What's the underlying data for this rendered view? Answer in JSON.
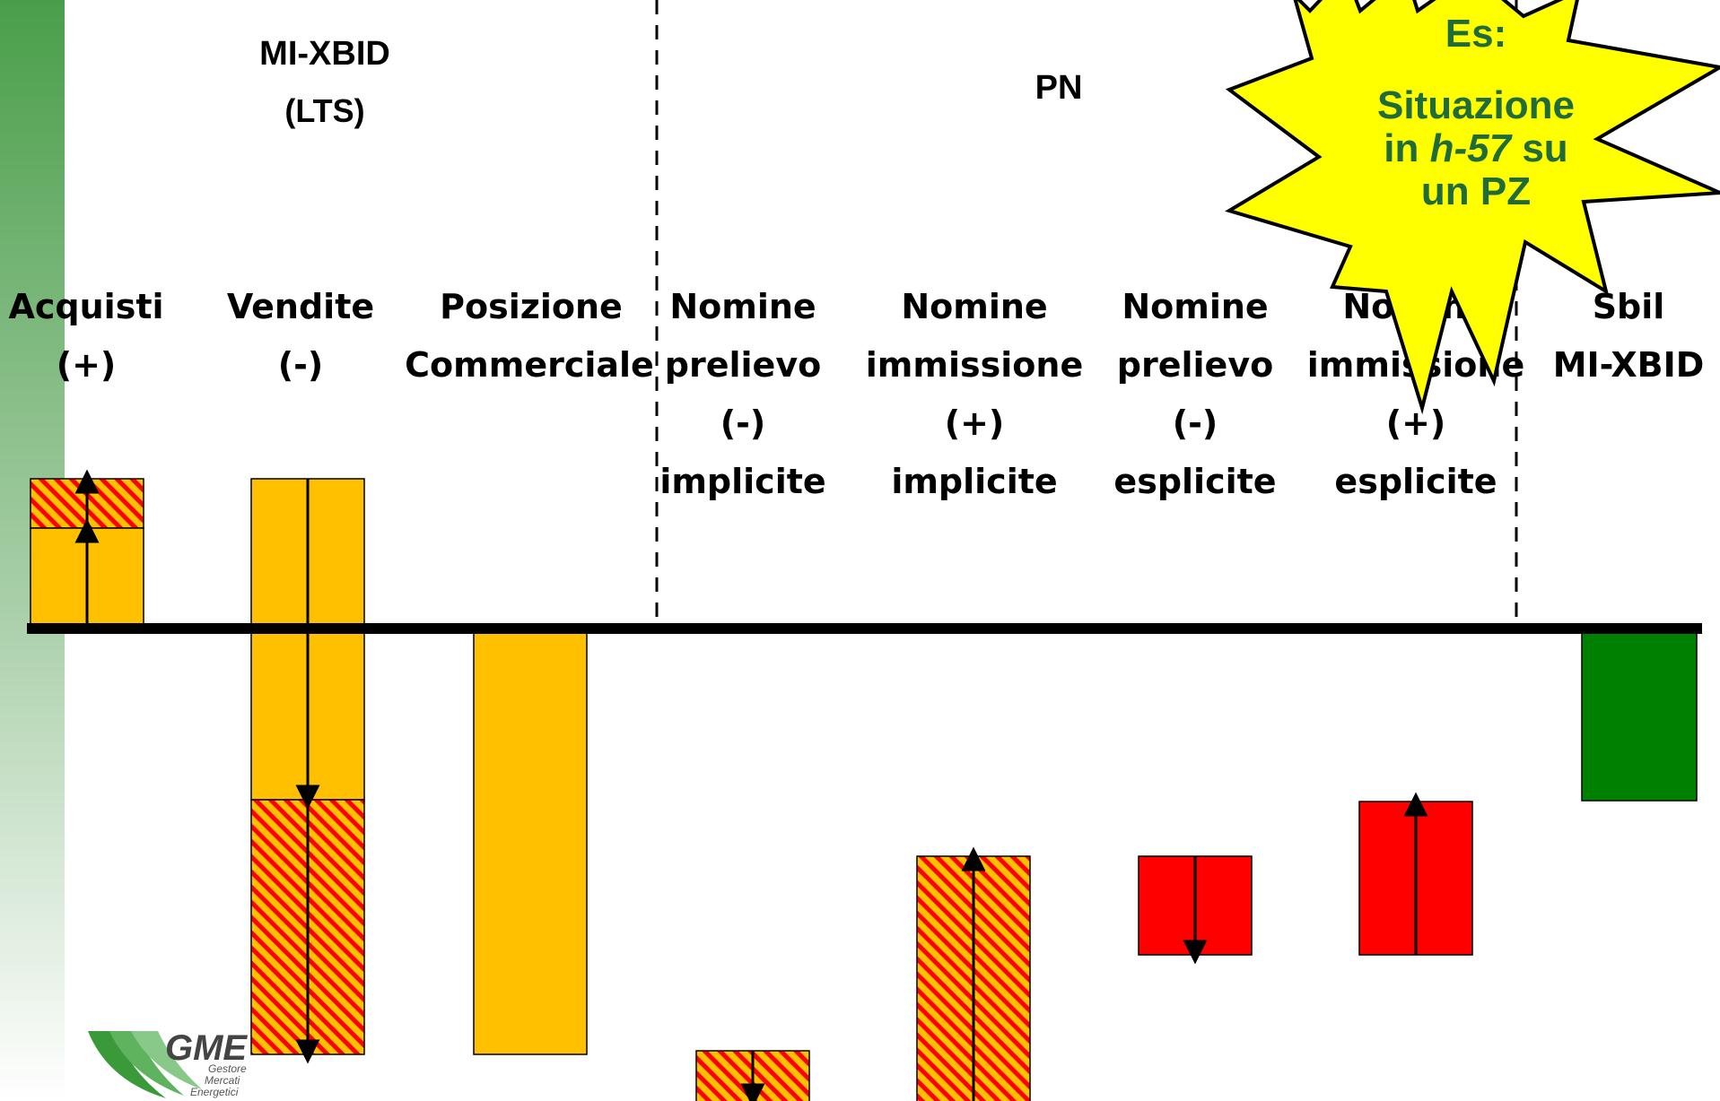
{
  "headers": {
    "mixbid": "MI-XBID",
    "lts": "(LTS)",
    "pn": "PN"
  },
  "burst": {
    "line1": "Es:",
    "line2": "Situazione",
    "line3_pre": "in ",
    "line3_em": "h-57",
    "line3_post": " su",
    "line4": "un PZ",
    "fill_color": "#ffff00"
  },
  "columns": [
    {
      "id": "acquisti",
      "lines": [
        "Acquisti",
        "(+)"
      ]
    },
    {
      "id": "vendite",
      "lines": [
        "Vendite",
        "(-)"
      ]
    },
    {
      "id": "posizione",
      "lines": [
        "Posizione",
        "Commerciale"
      ]
    },
    {
      "id": "nomine-prelievo-implicite",
      "lines": [
        "Nomine",
        "prelievo",
        "(-)",
        "implicite"
      ]
    },
    {
      "id": "nomine-immissione-implicite",
      "lines": [
        "Nomine",
        "immissione",
        "(+)",
        "implicite"
      ]
    },
    {
      "id": "nomine-prelievo-esplicite",
      "lines": [
        "Nomine",
        "prelievo",
        "(-)",
        "esplicite"
      ]
    },
    {
      "id": "nomine-immissione-esplicite",
      "lines": [
        "Nomine",
        "immissione",
        "(+)",
        "esplicite"
      ]
    },
    {
      "id": "sbil",
      "lines": [
        "Sbil",
        "MI-XBID"
      ]
    }
  ],
  "colors": {
    "orange": "#ffc000",
    "hatch_stripe": "#ff0000",
    "red": "#ff0000",
    "green": "#008000",
    "sidebar_top": "#4a9e4a",
    "sidebar_bottom": "#ffffff"
  },
  "logo": {
    "name": "GME",
    "line1": "Gestore",
    "line2": "Mercati",
    "line3": "Energetici"
  }
}
